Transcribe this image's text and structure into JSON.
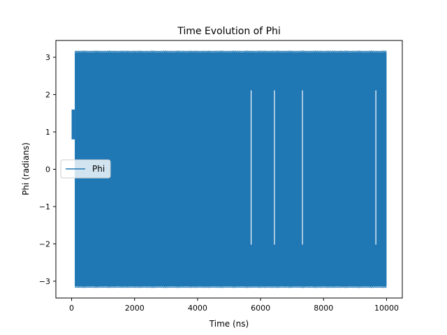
{
  "chart_data": {
    "type": "line",
    "title": "Time Evolution of Phi",
    "xlabel": "Time (ns)",
    "ylabel": "Phi (radians)",
    "xlim": [
      -500,
      10500
    ],
    "ylim": [
      -3.45,
      3.45
    ],
    "xticks": [
      0,
      2000,
      4000,
      6000,
      8000,
      10000
    ],
    "xtick_labels": [
      "0",
      "2000",
      "4000",
      "6000",
      "8000",
      "10000"
    ],
    "yticks": [
      -3,
      -2,
      -1,
      0,
      1,
      2,
      3
    ],
    "ytick_labels": [
      "−3",
      "−2",
      "−1",
      "0",
      "1",
      "2",
      "3"
    ],
    "grid": false,
    "legend_position": "center-left",
    "series": [
      {
        "name": "Phi",
        "color": "#1f77b4",
        "description_points": {
          "x_start": 0,
          "x_end": 10000,
          "initial_band": [
            0.8,
            1.6
          ],
          "band_min": -3.14159,
          "band_max": 3.14159,
          "wrap_start_x": 100
        },
        "gaps_x": [
          5700,
          6440,
          7330,
          9660
        ]
      }
    ]
  }
}
